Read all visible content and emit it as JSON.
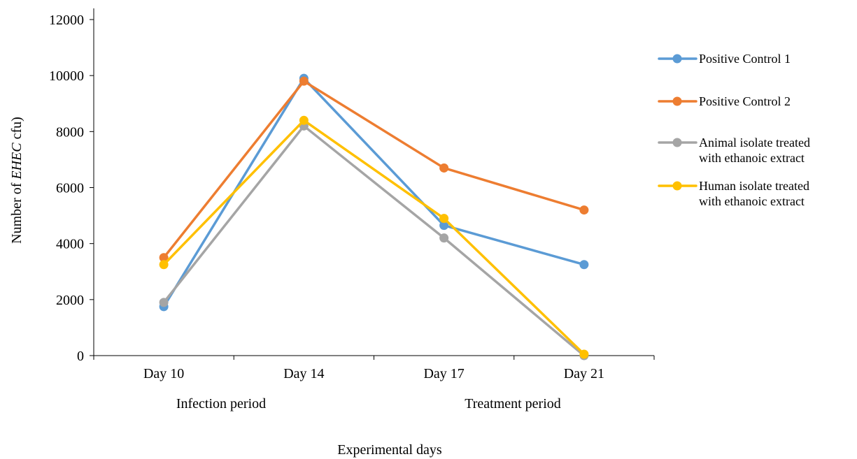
{
  "chart_data": {
    "type": "line",
    "categories": [
      "Day 10",
      "Day 14",
      "Day 17",
      "Day 21"
    ],
    "ylabel_prefix": "Number of ",
    "ylabel_italic": "EHEC",
    "ylabel_suffix": " cfu)",
    "xlabel": "Experimental days",
    "ylim": [
      0,
      12000
    ],
    "yticks": [
      "0",
      "2000",
      "4000",
      "6000",
      "8000",
      "10000",
      "12000"
    ],
    "grid": false,
    "legend_position": "right",
    "period_labels": {
      "infection": "Infection period",
      "treatment": "Treatment period"
    },
    "series": [
      {
        "name": [
          "Positive Control 1"
        ],
        "color": "#5B9BD5",
        "values": [
          1750,
          9900,
          4650,
          3250
        ]
      },
      {
        "name": [
          "Positive Control 2"
        ],
        "color": "#ED7D31",
        "values": [
          3500,
          9800,
          6700,
          5200
        ]
      },
      {
        "name": [
          "Animal isolate treated",
          "with ethanoic extract"
        ],
        "color": "#A5A5A5",
        "values": [
          1900,
          8200,
          4200,
          0
        ]
      },
      {
        "name": [
          "Human isolate treated",
          "with ethanoic extract"
        ],
        "color": "#FFC000",
        "values": [
          3250,
          8400,
          4900,
          50
        ]
      }
    ]
  }
}
